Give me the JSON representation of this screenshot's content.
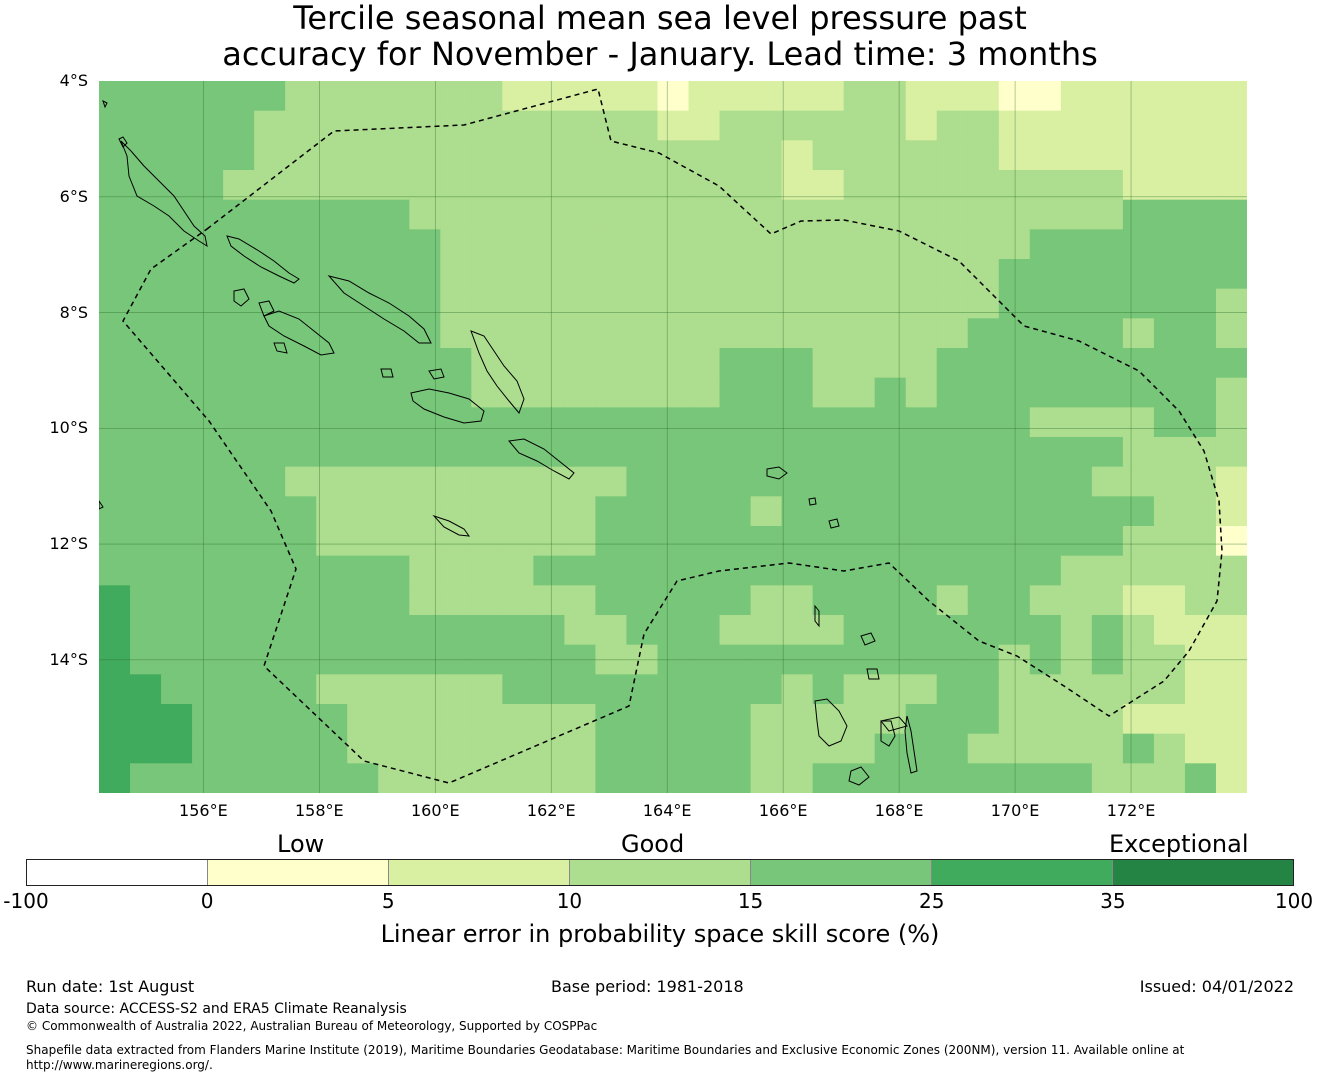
{
  "title": {
    "line1": "Tercile seasonal mean sea level pressure past",
    "line2": "accuracy for November - January. Lead time: 3 months"
  },
  "map": {
    "lat_labels": [
      "4°S",
      "6°S",
      "8°S",
      "10°S",
      "12°S",
      "14°S"
    ],
    "lon_labels": [
      "156°E",
      "158°E",
      "160°E",
      "162°E",
      "164°E",
      "166°E",
      "168°E",
      "170°E",
      "172°E"
    ],
    "extent": {
      "lon_min": 154.2,
      "lon_max": 174.0,
      "lat_min": -16.3,
      "lat_max": -4.0
    },
    "grid_cell_degrees": 0.833,
    "grid": [
      "3333332222222111110111112211100111111",
      "3333322222222222221122222212211111111",
      "3333322222222222222222122222211111111",
      "3333222222222222222222112222222221111",
      "3333333333222222222222222222222223333",
      "3333333333322222222222222222223333333",
      "3333333333322222222222222222233333333",
      "3333333333322222222222222222233333332",
      "3333333333322222222222222222333332332",
      "3333333333332222222233322223333333333",
      "3333333333332222222233322323333333332",
      "3333333333333333333333333333332222332",
      "3333333333333333333333333333333332222",
      "3333332222222222233333333333333322221",
      "3333333222222222333332333333333333221",
      "3333333222222222333333333333333332220",
      "3333333333222233333333333333333222222",
      "4333333333222222333332233332332221122",
      "4333333333333332233322223333333232111",
      "4333333333333333223333333333323232211",
      "4433333222222333333333232223322222211",
      "4443333322222222333332222233322221111",
      "4443333322222222333332222333222223211",
      "4333333332222222333332233333333322231"
    ],
    "palette": {
      "0": "#ffffcc",
      "1": "#d9f0a3",
      "2": "#addd8e",
      "3": "#78c679",
      "4": "#41ab5d"
    },
    "gridline_color": "#2a6e2a",
    "boundary_style": "dashed"
  },
  "legend": {
    "category_labels": [
      "Low",
      "Good",
      "Exceptional"
    ],
    "ticks": [
      "-100",
      "0",
      "5",
      "10",
      "15",
      "25",
      "35",
      "100"
    ],
    "colors": [
      "#ffffff",
      "#ffffcc",
      "#d9f0a3",
      "#addd8e",
      "#78c679",
      "#41ab5d",
      "#238443"
    ],
    "label": "Linear error in probability space skill score (%)"
  },
  "footer": {
    "run_date": "Run date: 1st August",
    "base_period": "Base period: 1981-2018",
    "issued": "Issued: 04/01/2022",
    "data_source": "Data source: ACCESS-S2 and ERA5 Climate Reanalysis",
    "copyright": "© Commonwealth of Australia 2022, Australian Bureau of Meteorology, Supported by COSPPac",
    "shapefile_line1": "Shapefile data extracted from Flanders Marine Institute (2019), Maritime Boundaries Geodatabase: Maritime Boundaries and Exclusive Economic Zones (200NM), version 11. Available online at",
    "shapefile_line2": "http://www.marineregions.org/."
  }
}
